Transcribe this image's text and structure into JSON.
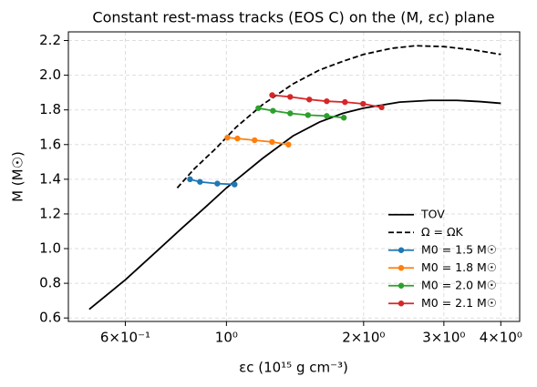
{
  "chart_data": {
    "type": "line",
    "title": "Constant rest-mass tracks (EOS C) on the (M, εc) plane",
    "x_label": "εc (10¹⁵ g cm⁻³)",
    "y_label": "M (M☉)",
    "x_scale": "log",
    "xlim": [
      0.45,
      4.4
    ],
    "ylim": [
      0.58,
      2.25
    ],
    "xticks": [
      {
        "value": 0.6,
        "label": "6×10⁻¹"
      },
      {
        "value": 1,
        "label": "10⁰"
      },
      {
        "value": 2,
        "label": "2×10⁰"
      },
      {
        "value": 3,
        "label": "3×10⁰"
      },
      {
        "value": 4,
        "label": "4×10⁰"
      }
    ],
    "yticks": [
      0.6,
      0.8,
      {
        "value": 1.0,
        "label": "1.0"
      },
      1.2,
      1.4,
      1.6,
      1.8,
      {
        "value": 2.0,
        "label": "2.0"
      },
      2.2
    ],
    "grid": true,
    "legend": "lower right",
    "series": [
      {
        "name": "TOV",
        "color": "#000000",
        "linestyle": "solid",
        "marker": false,
        "x": [
          0.5,
          0.6,
          0.7,
          0.8,
          0.9,
          1.0,
          1.2,
          1.4,
          1.6,
          1.8,
          2.0,
          2.4,
          2.8,
          3.2,
          3.6,
          4.0
        ],
        "values": [
          0.65,
          0.82,
          0.98,
          1.12,
          1.24,
          1.35,
          1.52,
          1.65,
          1.73,
          1.78,
          1.81,
          1.845,
          1.855,
          1.855,
          1.848,
          1.838
        ]
      },
      {
        "name": "Ω = ΩK",
        "color": "#000000",
        "linestyle": "dashed",
        "marker": false,
        "x": [
          0.78,
          0.85,
          0.95,
          1.05,
          1.2,
          1.4,
          1.6,
          1.8,
          2.0,
          2.3,
          2.6,
          3.0,
          3.5,
          4.0
        ],
        "values": [
          1.35,
          1.46,
          1.58,
          1.7,
          1.83,
          1.95,
          2.03,
          2.08,
          2.12,
          2.155,
          2.17,
          2.165,
          2.145,
          2.12
        ]
      },
      {
        "name": "M0 = 1.5 M☉",
        "color": "#1f77b4",
        "linestyle": "solid",
        "marker": true,
        "x": [
          0.832,
          0.875,
          0.955,
          1.042
        ],
        "values": [
          1.4,
          1.385,
          1.375,
          1.37
        ]
      },
      {
        "name": "M0 = 1.8 M☉",
        "color": "#ff7f0e",
        "linestyle": "solid",
        "marker": true,
        "x": [
          1.005,
          1.057,
          1.153,
          1.259,
          1.368
        ],
        "values": [
          1.64,
          1.635,
          1.625,
          1.615,
          1.6
        ]
      },
      {
        "name": "M0 = 2.0 M☉",
        "color": "#2ca02c",
        "linestyle": "solid",
        "marker": true,
        "x": [
          1.175,
          1.265,
          1.38,
          1.51,
          1.66,
          1.81
        ],
        "values": [
          1.81,
          1.795,
          1.78,
          1.77,
          1.765,
          1.755
        ]
      },
      {
        "name": "M0 = 2.1 M☉",
        "color": "#d62728",
        "linestyle": "solid",
        "marker": true,
        "x": [
          1.26,
          1.38,
          1.52,
          1.66,
          1.82,
          1.995,
          2.19
        ],
        "values": [
          1.885,
          1.875,
          1.86,
          1.85,
          1.845,
          1.835,
          1.815
        ]
      }
    ]
  }
}
